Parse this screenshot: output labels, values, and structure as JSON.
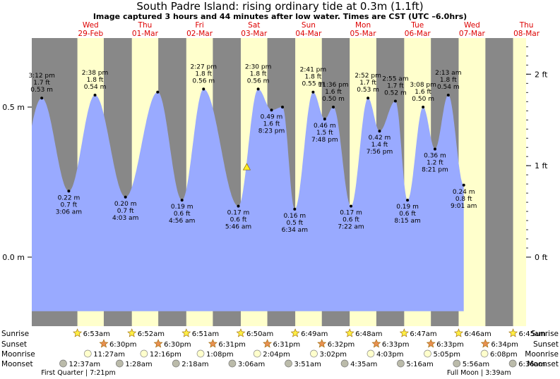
{
  "title": "South Padre Island: rising  ordinary tide at 0.3m (1.1ft)",
  "subtitle": "Image captured 3 hours and 44 minutes after low water. Times are CST (UTC –6.0hrs)",
  "chart_data": {
    "type": "area",
    "xaxis_unit": "days from Wed 29-Feb 00:00",
    "xlim": [
      -0.55,
      8.52
    ],
    "ylim_m": [
      -0.23,
      0.73
    ],
    "left_axis": {
      "unit": "m",
      "ticks": [
        {
          "value": 0.0,
          "label": "0.0 m"
        },
        {
          "value": 0.5,
          "label": "0.5 m"
        }
      ]
    },
    "right_axis": {
      "unit": "ft",
      "ticks": [
        {
          "value": 0,
          "label": "0 ft"
        },
        {
          "value": 1,
          "label": "1 ft"
        },
        {
          "value": 2,
          "label": "2 ft"
        }
      ]
    },
    "days": [
      {
        "dow": "Wed",
        "date": "29-Feb",
        "sunrise": 0.287,
        "sunset": 0.771
      },
      {
        "dow": "Thu",
        "date": "01-Mar",
        "sunrise": 1.286,
        "sunset": 1.771
      },
      {
        "dow": "Fri",
        "date": "02-Mar",
        "sunrise": 2.285,
        "sunset": 2.772
      },
      {
        "dow": "Sat",
        "date": "03-Mar",
        "sunrise": 3.285,
        "sunset": 3.772
      },
      {
        "dow": "Sun",
        "date": "04-Mar",
        "sunrise": 4.284,
        "sunset": 4.772
      },
      {
        "dow": "Mon",
        "date": "05-Mar",
        "sunrise": 5.283,
        "sunset": 5.772
      },
      {
        "dow": "Tue",
        "date": "06-Mar",
        "sunrise": 6.283,
        "sunset": 6.773
      },
      {
        "dow": "Wed",
        "date": "07-Mar",
        "sunrise": 7.282,
        "sunset": 7.773
      },
      {
        "dow": "Thu",
        "date": "08-Mar",
        "sunrise": 8.281,
        "sunset": 8.774
      }
    ],
    "tide_events": [
      {
        "t": -0.367,
        "m": 0.53,
        "time": "3:12 pm",
        "ft": "1.7 ft",
        "height": "0.53 m",
        "type": "high"
      },
      {
        "t": 0.129,
        "m": 0.22,
        "time": "3:06 am",
        "ft": "0.7 ft",
        "height": "0.22 m",
        "type": "low"
      },
      {
        "t": 0.61,
        "m": 0.54,
        "time": "2:38 pm",
        "ft": "1.8 ft",
        "height": "0.54 m",
        "type": "high"
      },
      {
        "t": 1.169,
        "m": 0.2,
        "time": "4:03 am",
        "ft": "0.7 ft",
        "height": "0.20 m",
        "type": "low"
      },
      {
        "t": 1.76,
        "m": 0.55,
        "time": "",
        "ft": "",
        "height": "",
        "type": "high"
      },
      {
        "t": 2.206,
        "m": 0.19,
        "time": "4:56 am",
        "ft": "0.6 ft",
        "height": "0.19 m",
        "type": "low"
      },
      {
        "t": 2.602,
        "m": 0.56,
        "time": "2:27 pm",
        "ft": "1.8 ft",
        "height": "0.56 m",
        "type": "high"
      },
      {
        "t": 3.24,
        "m": 0.17,
        "time": "5:46 am",
        "ft": "0.6 ft",
        "height": "0.17 m",
        "type": "low"
      },
      {
        "t": 3.604,
        "m": 0.56,
        "time": "2:30 pm",
        "ft": "1.8 ft",
        "height": "0.56 m",
        "type": "high"
      },
      {
        "t": 3.849,
        "m": 0.49,
        "time": "8:23 pm",
        "ft": "1.6 ft",
        "height": "0.49 m",
        "type": "low"
      },
      {
        "t": 4.05,
        "m": 0.5,
        "time": "",
        "ft": "",
        "height": "",
        "type": "high"
      },
      {
        "t": 4.274,
        "m": 0.16,
        "time": "6:34 am",
        "ft": "0.5 ft",
        "height": "0.16 m",
        "type": "low"
      },
      {
        "t": 4.612,
        "m": 0.55,
        "time": "2:41 pm",
        "ft": "1.8 ft",
        "height": "0.55 m",
        "type": "high"
      },
      {
        "t": 4.825,
        "m": 0.46,
        "time": "7:48 pm",
        "ft": "1.5 ft",
        "height": "0.46 m",
        "type": "low"
      },
      {
        "t": 4.983,
        "m": 0.5,
        "time": "11:36 pm",
        "ft": "1.6 ft",
        "height": "0.50 m",
        "type": "high"
      },
      {
        "t": 5.307,
        "m": 0.17,
        "time": "7:22 am",
        "ft": "0.6 ft",
        "height": "0.17 m",
        "type": "low"
      },
      {
        "t": 5.619,
        "m": 0.53,
        "time": "2:52 pm",
        "ft": "1.7 ft",
        "height": "0.53 m",
        "type": "high"
      },
      {
        "t": 5.831,
        "m": 0.42,
        "time": "7:56 pm",
        "ft": "1.4 ft",
        "height": "0.42 m",
        "type": "low"
      },
      {
        "t": 6.122,
        "m": 0.52,
        "time": "2:55 am",
        "ft": "1.7 ft",
        "height": "0.52 m",
        "type": "high"
      },
      {
        "t": 6.344,
        "m": 0.19,
        "time": "8:15 am",
        "ft": "0.6 ft",
        "height": "0.19 m",
        "type": "low"
      },
      {
        "t": 6.63,
        "m": 0.5,
        "time": "3:08 pm",
        "ft": "1.6 ft",
        "height": "0.50 m",
        "type": "high"
      },
      {
        "t": 6.848,
        "m": 0.36,
        "time": "8:21 pm",
        "ft": "1.2 ft",
        "height": "0.36 m",
        "type": "low"
      },
      {
        "t": 7.092,
        "m": 0.54,
        "time": "2:13 am",
        "ft": "1.8 ft",
        "height": "0.54 m",
        "type": "high"
      },
      {
        "t": 7.376,
        "m": 0.24,
        "time": "9:01 am",
        "ft": "0.8 ft",
        "height": "0.24 m",
        "type": "low"
      }
    ],
    "curve_extent": [
      -0.55,
      7.376
    ],
    "current": {
      "t": 3.395,
      "m": 0.3
    },
    "rows": {
      "sunrise": {
        "label": "Sunrise",
        "items": [
          {
            "t": 0.287,
            "text": "6:53am"
          },
          {
            "t": 1.286,
            "text": "6:52am"
          },
          {
            "t": 2.285,
            "text": "6:51am"
          },
          {
            "t": 3.285,
            "text": "6:50am"
          },
          {
            "t": 4.284,
            "text": "6:49am"
          },
          {
            "t": 5.283,
            "text": "6:48am"
          },
          {
            "t": 6.283,
            "text": "6:47am"
          },
          {
            "t": 7.282,
            "text": "6:46am"
          },
          {
            "t": 8.281,
            "text": "6:45am"
          }
        ]
      },
      "sunset": {
        "label": "Sunset",
        "items": [
          {
            "t": 0.771,
            "text": "6:30pm"
          },
          {
            "t": 1.771,
            "text": "6:30pm"
          },
          {
            "t": 2.772,
            "text": "6:31pm"
          },
          {
            "t": 3.772,
            "text": "6:31pm"
          },
          {
            "t": 4.772,
            "text": "6:32pm"
          },
          {
            "t": 5.772,
            "text": "6:33pm"
          },
          {
            "t": 6.773,
            "text": "6:33pm"
          },
          {
            "t": 7.773,
            "text": "6:34pm"
          }
        ]
      },
      "moonrise": {
        "label": "Moonrise",
        "items": [
          {
            "t": 0.477,
            "text": "11:27am"
          },
          {
            "t": 1.509,
            "text": "12:16pm"
          },
          {
            "t": 2.547,
            "text": "1:08pm"
          },
          {
            "t": 3.586,
            "text": "2:04pm"
          },
          {
            "t": 4.626,
            "text": "3:02pm"
          },
          {
            "t": 5.669,
            "text": "4:03pm"
          },
          {
            "t": 6.712,
            "text": "5:05pm"
          },
          {
            "t": 7.756,
            "text": "6:08pm"
          }
        ]
      },
      "moonset": {
        "label": "Moonset",
        "items": [
          {
            "t": 0.026,
            "text": "12:37am"
          },
          {
            "t": 1.061,
            "text": "1:28am"
          },
          {
            "t": 2.096,
            "text": "2:18am"
          },
          {
            "t": 3.129,
            "text": "3:06am"
          },
          {
            "t": 4.16,
            "text": "3:51am"
          },
          {
            "t": 5.191,
            "text": "4:35am"
          },
          {
            "t": 6.219,
            "text": "5:16am"
          },
          {
            "t": 7.247,
            "text": "5:56am"
          },
          {
            "t": 8.275,
            "text": "6:36am"
          }
        ]
      }
    },
    "phases": [
      {
        "t": 0.305,
        "text": "First Quarter | 7:21pm"
      },
      {
        "t": 7.655,
        "text": "Full Moon | 3:39am"
      }
    ],
    "colors": {
      "night": "#888888",
      "day": "#ffffcc",
      "water": "#99aaff",
      "day_label": "#dd0000",
      "sun_fill": "#ffee44",
      "sunset_fill": "#e89050",
      "moonrise_fill": "#ffffcc",
      "moonset_fill": "#bbbbaa"
    }
  }
}
